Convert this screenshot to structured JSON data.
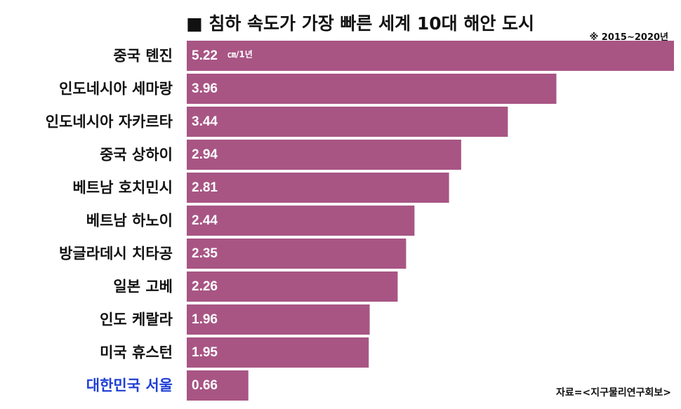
{
  "header": {
    "title": "■ 침하 속도가 가장 빠른 세계 10대 해안 도시",
    "period_note": "※ 2015~2020년"
  },
  "footer": {
    "source": "자료=<지구물리연구회보>"
  },
  "colors": {
    "bar": "#a85584",
    "label_default": "#111111",
    "label_highlight": "#1f3fd6",
    "value_text": "#ffffff"
  },
  "chart_data": {
    "type": "bar",
    "orientation": "horizontal",
    "title": "■ 침하 속도가 가장 빠른 세계 10대 해안 도시",
    "unit": "㎝/1년",
    "categories": [
      "중국 톈진",
      "인도네시아 세마랑",
      "인도네시아 자카르타",
      "중국 상하이",
      "베트남 호치민시",
      "베트남 하노이",
      "방글라데시 치타공",
      "일본 고베",
      "인도 케랄라",
      "미국 휴스턴",
      "대한민국 서울"
    ],
    "values": [
      5.22,
      3.96,
      3.44,
      2.94,
      2.81,
      2.44,
      2.35,
      2.26,
      1.96,
      1.95,
      0.66
    ],
    "value_labels": [
      "5.22",
      "3.96",
      "3.44",
      "2.94",
      "2.81",
      "2.44",
      "2.35",
      "2.26",
      "1.96",
      "1.95",
      "0.66"
    ],
    "highlight_category": "대한민국 서울",
    "xlim": [
      0,
      5.22
    ],
    "grid": false,
    "legend": "none"
  }
}
